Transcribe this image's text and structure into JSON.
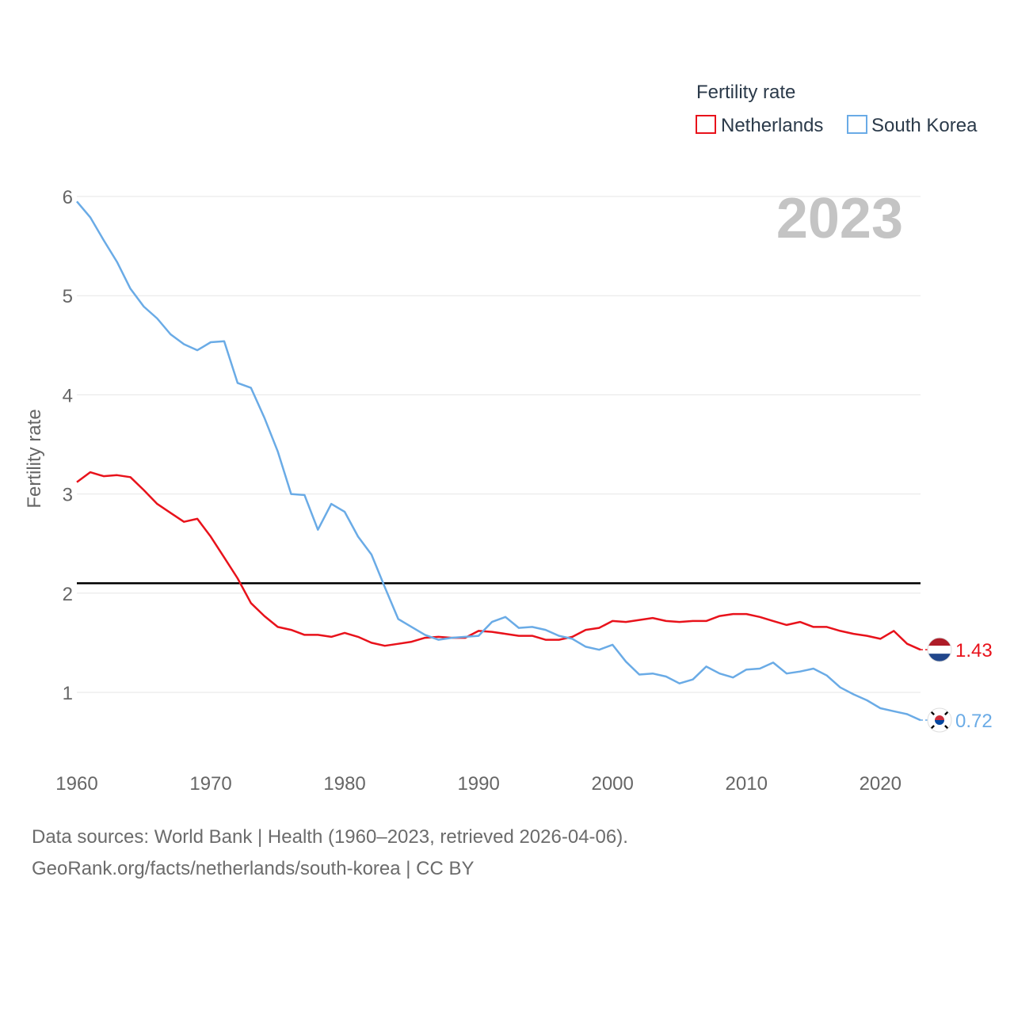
{
  "colors": {
    "netherlands": "#e8121b",
    "south_korea": "#6aabe6",
    "reference_line": "#000000",
    "grid": "#e6e6e6",
    "axis_text": "#666666",
    "year_watermark": "#c4c4c4",
    "legend_text": "#2b3a4a"
  },
  "chart_data": {
    "type": "line",
    "ylabel": "Fertility rate",
    "xlabel": "",
    "xlim": [
      1960,
      2023
    ],
    "ylim": [
      0.5,
      6
    ],
    "x_ticks": [
      1960,
      1970,
      1980,
      1990,
      2000,
      2010,
      2020
    ],
    "y_ticks": [
      1,
      2,
      3,
      4,
      5,
      6
    ],
    "year_label": "2023",
    "reference_line": {
      "value": 2.1
    },
    "legend": {
      "title": "Fertility rate",
      "position": "top-right"
    },
    "x": [
      1960,
      1961,
      1962,
      1963,
      1964,
      1965,
      1966,
      1967,
      1968,
      1969,
      1970,
      1971,
      1972,
      1973,
      1974,
      1975,
      1976,
      1977,
      1978,
      1979,
      1980,
      1981,
      1982,
      1983,
      1984,
      1985,
      1986,
      1987,
      1988,
      1989,
      1990,
      1991,
      1992,
      1993,
      1994,
      1995,
      1996,
      1997,
      1998,
      1999,
      2000,
      2001,
      2002,
      2003,
      2004,
      2005,
      2006,
      2007,
      2008,
      2009,
      2010,
      2011,
      2012,
      2013,
      2014,
      2015,
      2016,
      2017,
      2018,
      2019,
      2020,
      2021,
      2022,
      2023
    ],
    "series": [
      {
        "name": "Netherlands",
        "color_key": "netherlands",
        "end_label": "1.43",
        "flag": "netherlands-flag",
        "values": [
          3.12,
          3.22,
          3.18,
          3.19,
          3.17,
          3.04,
          2.9,
          2.81,
          2.72,
          2.75,
          2.57,
          2.36,
          2.15,
          1.9,
          1.77,
          1.66,
          1.63,
          1.58,
          1.58,
          1.56,
          1.6,
          1.56,
          1.5,
          1.47,
          1.49,
          1.51,
          1.55,
          1.56,
          1.55,
          1.55,
          1.62,
          1.61,
          1.59,
          1.57,
          1.57,
          1.53,
          1.53,
          1.56,
          1.63,
          1.65,
          1.72,
          1.71,
          1.73,
          1.75,
          1.72,
          1.71,
          1.72,
          1.72,
          1.77,
          1.79,
          1.79,
          1.76,
          1.72,
          1.68,
          1.71,
          1.66,
          1.66,
          1.62,
          1.59,
          1.57,
          1.54,
          1.62,
          1.49,
          1.43
        ]
      },
      {
        "name": "South Korea",
        "color_key": "south_korea",
        "end_label": "0.72",
        "flag": "south-korea-flag",
        "values": [
          5.95,
          5.79,
          5.56,
          5.34,
          5.07,
          4.89,
          4.77,
          4.61,
          4.51,
          4.45,
          4.53,
          4.54,
          4.12,
          4.07,
          3.77,
          3.43,
          3.0,
          2.99,
          2.64,
          2.9,
          2.82,
          2.57,
          2.39,
          2.06,
          1.74,
          1.66,
          1.58,
          1.53,
          1.55,
          1.56,
          1.57,
          1.71,
          1.76,
          1.65,
          1.66,
          1.63,
          1.57,
          1.54,
          1.46,
          1.43,
          1.48,
          1.31,
          1.18,
          1.19,
          1.16,
          1.09,
          1.13,
          1.26,
          1.19,
          1.15,
          1.23,
          1.24,
          1.3,
          1.19,
          1.21,
          1.24,
          1.17,
          1.05,
          0.98,
          0.92,
          0.84,
          0.81,
          0.78,
          0.72
        ]
      }
    ]
  },
  "sources": {
    "line1": "Data sources: World Bank | Health (1960–2023, retrieved 2026-04-06).",
    "line2": "GeoRank.org/facts/netherlands/south-korea | CC BY"
  }
}
